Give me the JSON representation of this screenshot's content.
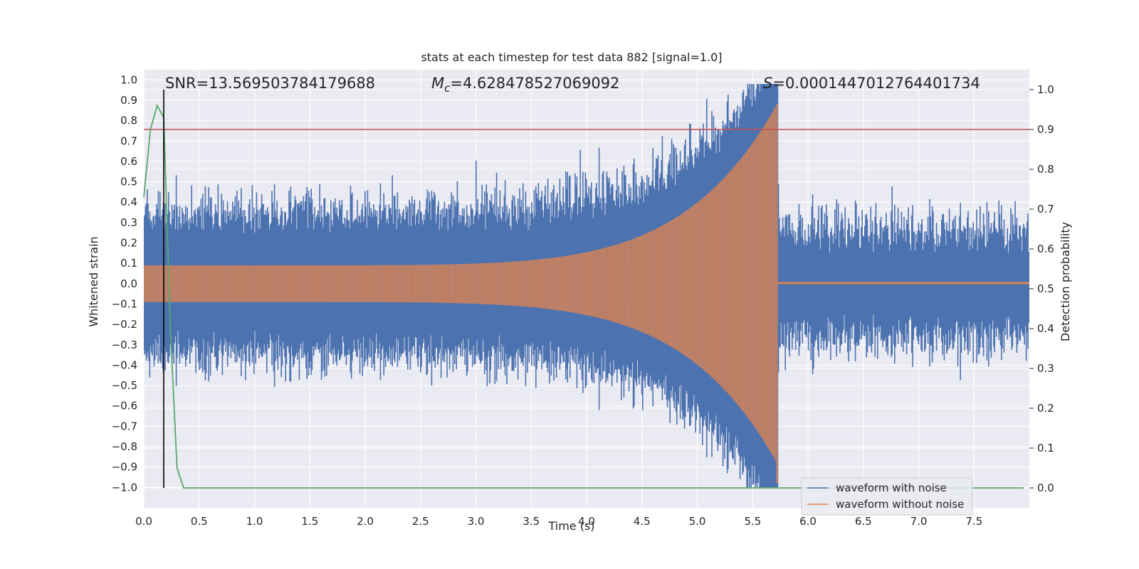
{
  "chart_data": {
    "type": "line",
    "title": "stats at each timestep for test data 882 [signal=1.0]",
    "xlabel": "Time (s)",
    "ylabel": "Whitened strain",
    "y2label": "Detection probability",
    "xlim": [
      0.0,
      8.0
    ],
    "ylim": [
      -1.1,
      1.05
    ],
    "y2lim": [
      -0.05,
      1.05
    ],
    "xticks": [
      "0.0",
      "0.5",
      "1.0",
      "1.5",
      "2.0",
      "2.5",
      "3.0",
      "3.5",
      "4.0",
      "4.5",
      "5.0",
      "5.5",
      "6.0",
      "6.5",
      "7.0",
      "7.5"
    ],
    "yticks": [
      "1.0",
      "0.9",
      "0.8",
      "0.7",
      "0.6",
      "0.5",
      "0.4",
      "0.3",
      "0.2",
      "0.1",
      "0.0",
      "−0.1",
      "−0.2",
      "−0.3",
      "−0.4",
      "−0.5",
      "−0.6",
      "−0.7",
      "−0.8",
      "−0.9",
      "−1.0"
    ],
    "y2ticks": [
      "1.0",
      "0.9",
      "0.8",
      "0.7",
      "0.6",
      "0.5",
      "0.4",
      "0.3",
      "0.2",
      "0.1",
      "0.0"
    ],
    "annotations": {
      "snr": "SNR=13.569503784179688",
      "mc_symbol": "M",
      "mc_sub": "c",
      "mc_value": "=4.628478527069092",
      "s_symbol": "S",
      "s_value": "=0.0001447012764401734"
    },
    "threshold": 0.9,
    "detection_time": 0.18,
    "merger_time": 5.72,
    "series": [
      {
        "name": "waveform with noise",
        "color": "#4c72b0",
        "noise_amplitude": 0.42,
        "peak_amplitude": 0.98
      },
      {
        "name": "waveform without noise",
        "color": "#dd8452",
        "initial_amplitude": 0.09,
        "peak_amplitude": 0.88
      },
      {
        "name": "detection probability",
        "color": "#55a868",
        "t": [
          0.0,
          0.06,
          0.12,
          0.18,
          0.24,
          0.3,
          0.36,
          0.42,
          8.0
        ],
        "p": [
          0.73,
          0.9,
          0.96,
          0.93,
          0.4,
          0.05,
          0.0,
          0.0,
          0.0
        ]
      }
    ],
    "legend": {
      "position": "lower-right",
      "entries": [
        "waveform with noise",
        "waveform without noise"
      ]
    },
    "colors": {
      "background": "#eaeaf2",
      "grid": "#ffffff",
      "threshold": "#c44e52",
      "detection_line": "#000000"
    }
  }
}
